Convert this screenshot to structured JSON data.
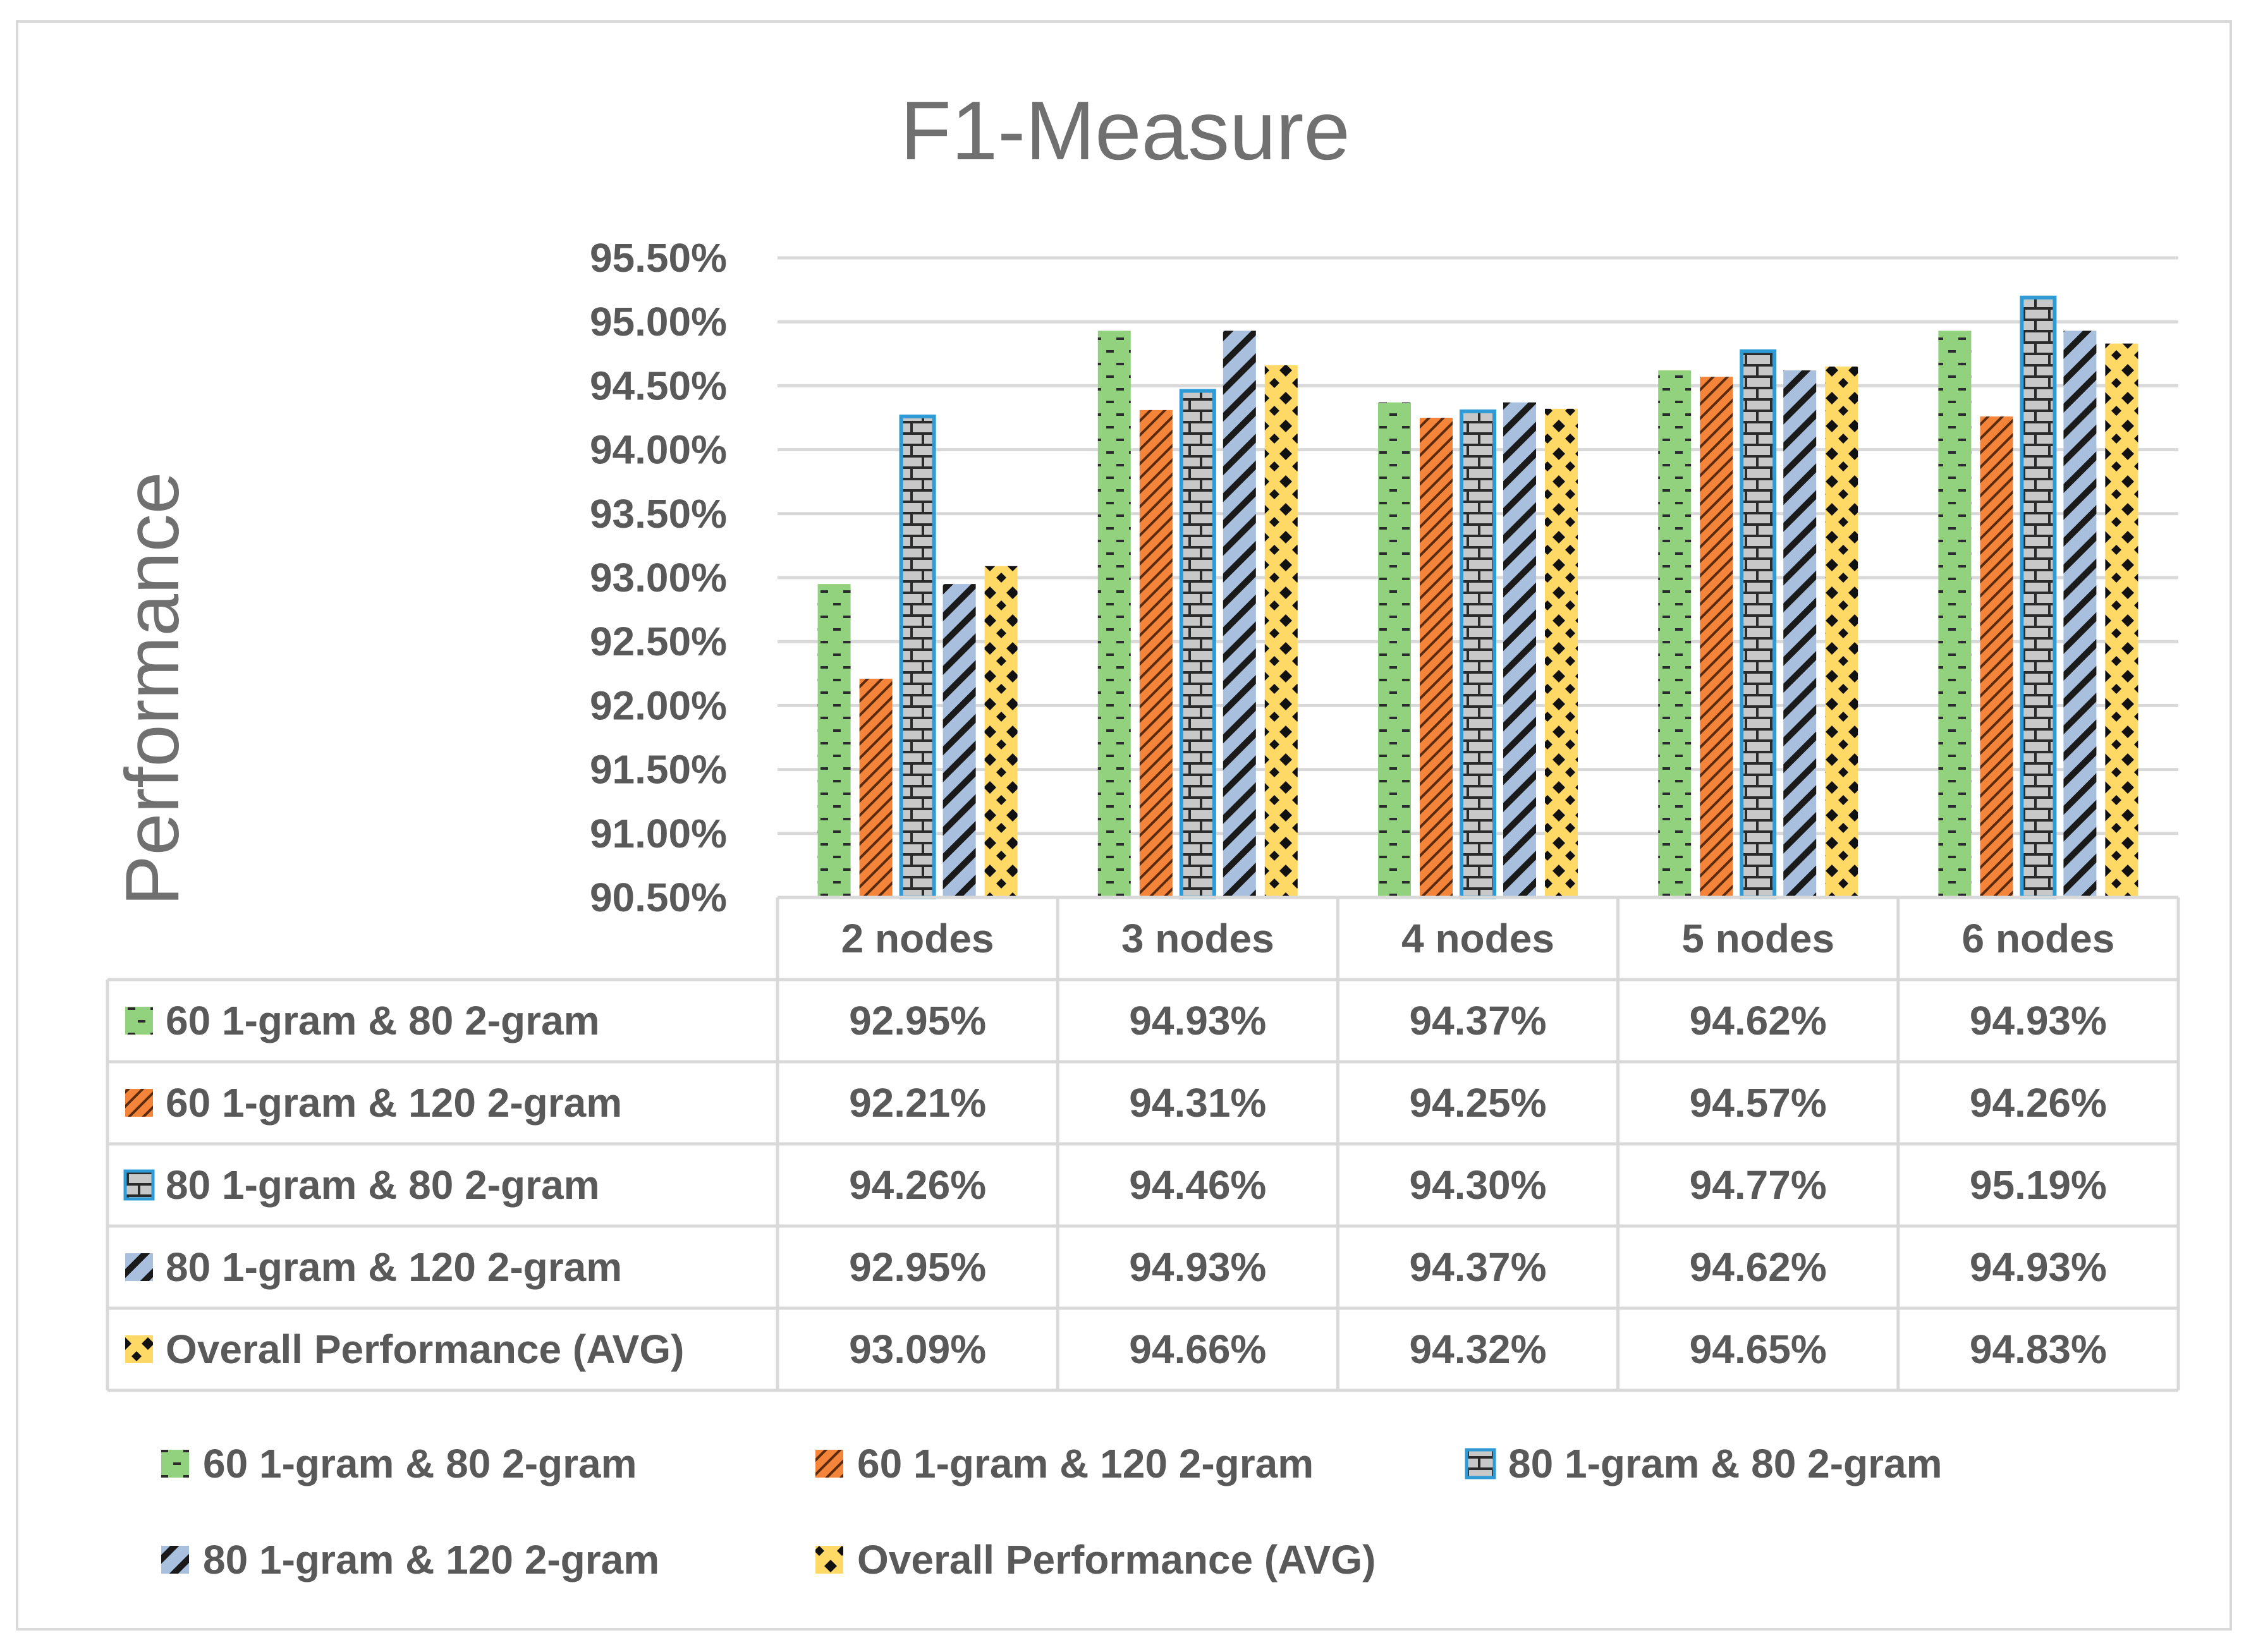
{
  "chart_data": {
    "type": "bar",
    "title": "F1-Measure",
    "ylabel": "Performance",
    "xlabel": "",
    "ylim": [
      90.5,
      95.5
    ],
    "y_ticks": [
      "95.50%",
      "95.00%",
      "94.50%",
      "94.00%",
      "93.50%",
      "93.00%",
      "92.50%",
      "92.00%",
      "91.50%",
      "91.00%",
      "90.50%"
    ],
    "y_tick_values": [
      95.5,
      95.0,
      94.5,
      94.0,
      93.5,
      93.0,
      92.5,
      92.0,
      91.5,
      91.0,
      90.5
    ],
    "categories": [
      "2 nodes",
      "3 nodes",
      "4 nodes",
      "5 nodes",
      "6 nodes"
    ],
    "series": [
      {
        "name": "60 1-gram & 80 2-gram",
        "values": [
          92.95,
          94.93,
          94.37,
          94.62,
          94.93
        ],
        "labels": [
          "92.95%",
          "94.93%",
          "94.37%",
          "94.62%",
          "94.93%"
        ],
        "color": "#92d27f",
        "pattern": "dash"
      },
      {
        "name": "60 1-gram & 120 2-gram",
        "values": [
          92.21,
          94.31,
          94.25,
          94.57,
          94.26
        ],
        "labels": [
          "92.21%",
          "94.31%",
          "94.25%",
          "94.57%",
          "94.26%"
        ],
        "color": "#f5843b",
        "pattern": "diag-thin"
      },
      {
        "name": "80 1-gram & 80 2-gram",
        "values": [
          94.26,
          94.46,
          94.3,
          94.77,
          95.19
        ],
        "labels": [
          "94.26%",
          "94.46%",
          "94.30%",
          "94.77%",
          "95.19%"
        ],
        "color": "#c8c8c8",
        "pattern": "brick",
        "border": "#2e9bd6"
      },
      {
        "name": "80 1-gram & 120 2-gram",
        "values": [
          92.95,
          94.93,
          94.37,
          94.62,
          94.93
        ],
        "labels": [
          "92.95%",
          "94.93%",
          "94.37%",
          "94.62%",
          "94.93%"
        ],
        "color": "#a9bfde",
        "pattern": "diag-wide"
      },
      {
        "name": "Overall Performance (AVG)",
        "values": [
          93.09,
          94.66,
          94.32,
          94.65,
          94.83
        ],
        "labels": [
          "93.09%",
          "94.66%",
          "94.32%",
          "94.65%",
          "94.83%"
        ],
        "color": "#ffd966",
        "pattern": "diamond"
      }
    ],
    "legend": "bottom",
    "grid": true,
    "data_table": true
  }
}
